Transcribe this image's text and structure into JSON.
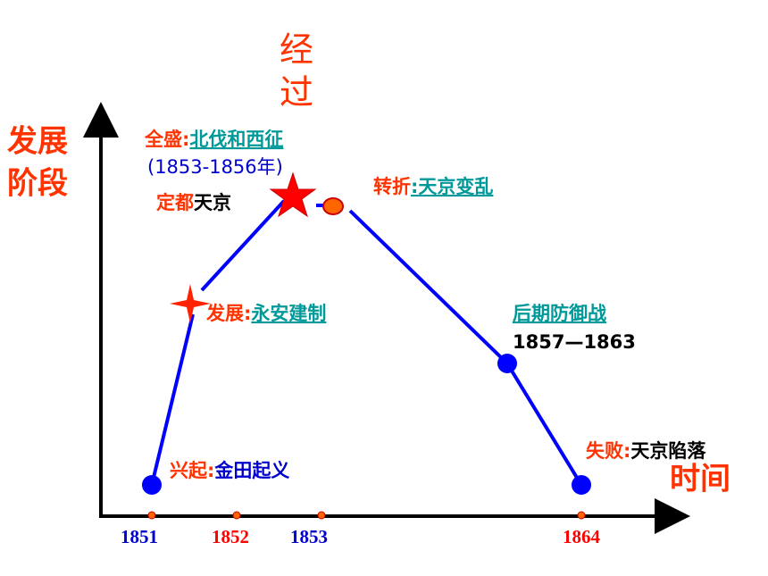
{
  "title": [
    "经",
    "过"
  ],
  "y_axis_label": [
    "发展",
    "阶段"
  ],
  "x_axis_label": "时间",
  "x_ticks": [
    "1851",
    "1852",
    "1853",
    "1864"
  ],
  "annotations": {
    "peak": {
      "stage": "全盛",
      "sep": ":",
      "event": "北伐和西征",
      "period": "(1853-1856年)"
    },
    "capital": {
      "stage": "定都",
      "event": "天京"
    },
    "turn": {
      "stage": "转折",
      "event": ":天京变乱"
    },
    "develop": {
      "stage": "发展",
      "sep": ":",
      "event": "永安建制"
    },
    "late": {
      "event": "后期防御战",
      "period": "1857—1863"
    },
    "fail": {
      "stage": "失败",
      "sep": ":",
      "event": "天京陷落"
    },
    "rise": {
      "stage": "兴起",
      "sep": ":",
      "event": "金田起义"
    }
  }
}
